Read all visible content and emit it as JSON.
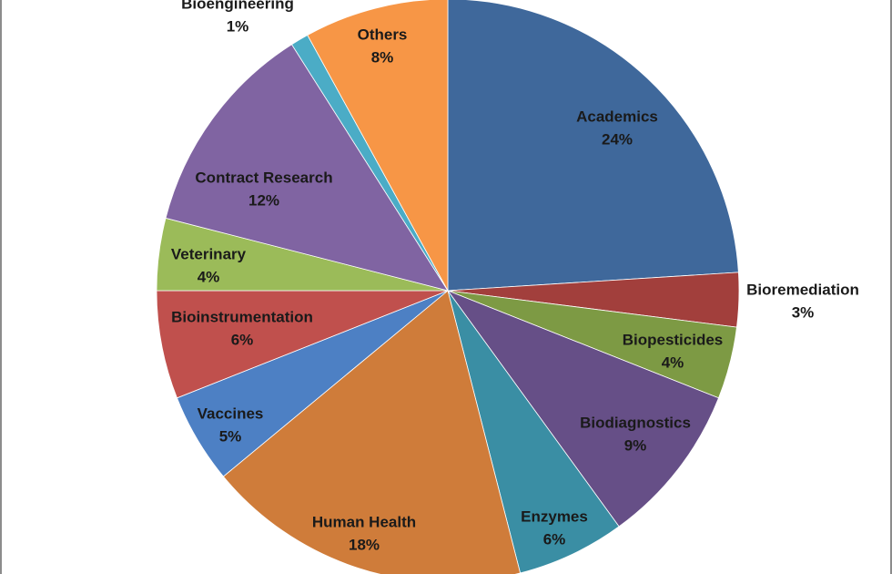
{
  "chart_data": {
    "type": "pie",
    "title": "",
    "start_angle_deg": 0,
    "direction": "clockwise",
    "slices": [
      {
        "label": "Academics",
        "value": 24,
        "value_label": "24%",
        "color": "#3f689b"
      },
      {
        "label": "Bioremediation",
        "value": 3,
        "value_label": "3%",
        "color": "#a23f3c"
      },
      {
        "label": "Biopesticides",
        "value": 4,
        "value_label": "4%",
        "color": "#7d9a44"
      },
      {
        "label": "Biodiagnostics",
        "value": 9,
        "value_label": "9%",
        "color": "#664f87"
      },
      {
        "label": "Enzymes",
        "value": 6,
        "value_label": "6%",
        "color": "#3a8ea4"
      },
      {
        "label": "Human Health",
        "value": 18,
        "value_label": "18%",
        "color": "#cf7c3a"
      },
      {
        "label": "Vaccines",
        "value": 5,
        "value_label": "5%",
        "color": "#4d80c4"
      },
      {
        "label": "Bioinstrumentation",
        "value": 6,
        "value_label": "6%",
        "color": "#c0504d"
      },
      {
        "label": "Veterinary",
        "value": 4,
        "value_label": "4%",
        "color": "#9bbb59"
      },
      {
        "label": "Contract Research",
        "value": 12,
        "value_label": "12%",
        "color": "#8064a2"
      },
      {
        "label": "Bioengineering",
        "value": 1,
        "value_label": "1%",
        "color": "#4bacc6"
      },
      {
        "label": "Others",
        "value": 8,
        "value_label": "8%",
        "color": "#f79646"
      }
    ],
    "legend": "none",
    "data_labels": "category and percentage"
  }
}
